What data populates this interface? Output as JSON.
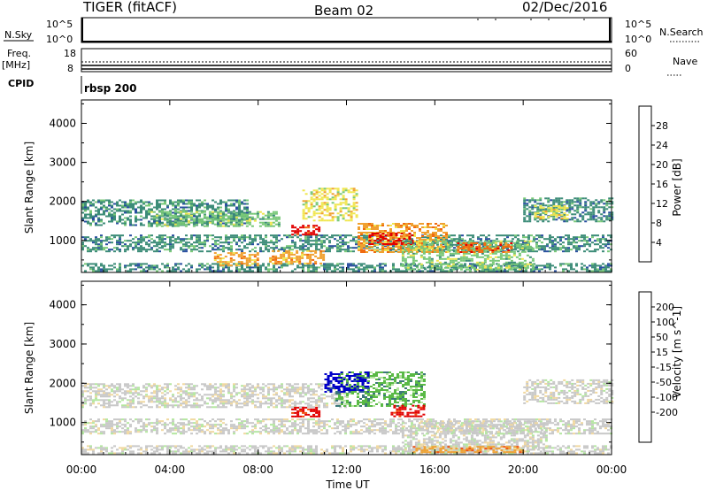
{
  "header": {
    "title": "TIGER (fitACF)",
    "beam": "Beam 02",
    "date": "02/Dec/2016"
  },
  "status_panels": {
    "nsky_label": "N.Sky",
    "nsky_ticks": [
      "10^5",
      "10^0"
    ],
    "nsearch_label": "N.Search",
    "freq_label_top": "Freq.",
    "freq_label_unit": "[MHz]",
    "freq_ticks": [
      "18",
      "8"
    ],
    "nave_ticks": [
      "60",
      "0"
    ],
    "nave_label": "Nave",
    "cpid_label": "CPID",
    "cpid_value": "rbsp 200"
  },
  "colors": {
    "power_scale": [
      "#0000ff",
      "#2a4fa0",
      "#3c8c78",
      "#78c878",
      "#f0e650",
      "#f0a030",
      "#f06a10",
      "#e10000"
    ],
    "velocity_scale": [
      "#e10000",
      "#f05010",
      "#f0a030",
      "#f0d8a0",
      "#c8c8c8",
      "#b4e6a0",
      "#5ab946",
      "#3c7878",
      "#2a50a0",
      "#0000c8"
    ],
    "ground_scatter": "#c0c0c0"
  },
  "chart_data": [
    {
      "type": "heatmap",
      "name": "power",
      "ylabel": "Slant Range [km]",
      "xlabel": "",
      "xlim_hours": [
        0,
        24
      ],
      "ylim_km": [
        180,
        4600
      ],
      "x_ticks": [
        "00:00",
        "04:00",
        "08:00",
        "12:00",
        "16:00",
        "20:00",
        "00:00"
      ],
      "y_ticks": [
        1000,
        2000,
        3000,
        4000
      ],
      "colorbar": {
        "label": "Power [dB]",
        "ticks": [
          4,
          8,
          12,
          16,
          20,
          24,
          28
        ],
        "range": [
          0,
          32
        ]
      },
      "regions": [
        {
          "t0": 0.0,
          "t1": 24.0,
          "r0": 200,
          "r1": 420,
          "level": 2
        },
        {
          "t0": 0.0,
          "t1": 24.0,
          "r0": 700,
          "r1": 1150,
          "level": 2
        },
        {
          "t0": 0.0,
          "t1": 7.5,
          "r0": 1400,
          "r1": 2050,
          "level": 2
        },
        {
          "t0": 3.0,
          "t1": 9.0,
          "r0": 1350,
          "r1": 1750,
          "level": 3
        },
        {
          "t0": 6.0,
          "t1": 8.0,
          "r0": 380,
          "r1": 700,
          "level": 5
        },
        {
          "t0": 8.5,
          "t1": 11.0,
          "r0": 400,
          "r1": 750,
          "level": 5
        },
        {
          "t0": 9.5,
          "t1": 10.8,
          "r0": 1150,
          "r1": 1400,
          "level": 7
        },
        {
          "t0": 10.0,
          "t1": 12.5,
          "r0": 1500,
          "r1": 2350,
          "level": 4
        },
        {
          "t0": 12.5,
          "t1": 16.5,
          "r0": 700,
          "r1": 1450,
          "level": 5
        },
        {
          "t0": 13.0,
          "t1": 15.0,
          "r0": 900,
          "r1": 1200,
          "level": 7
        },
        {
          "t0": 14.5,
          "t1": 20.5,
          "r0": 250,
          "r1": 1000,
          "level": 3
        },
        {
          "t0": 17.0,
          "t1": 19.5,
          "r0": 700,
          "r1": 950,
          "level": 6
        },
        {
          "t0": 20.0,
          "t1": 24.0,
          "r0": 1500,
          "r1": 2100,
          "level": 2
        },
        {
          "t0": 20.5,
          "t1": 22.0,
          "r0": 1550,
          "r1": 1900,
          "level": 4
        }
      ]
    },
    {
      "type": "heatmap",
      "name": "velocity",
      "ylabel": "Slant Range [km]",
      "xlabel": "Time UT",
      "xlim_hours": [
        0,
        24
      ],
      "ylim_km": [
        180,
        4600
      ],
      "x_ticks": [
        "00:00",
        "04:00",
        "08:00",
        "12:00",
        "16:00",
        "20:00",
        "00:00"
      ],
      "y_ticks": [
        1000,
        2000,
        3000,
        4000
      ],
      "colorbar": {
        "label": "Velocity [m s^-1]",
        "ticks": [
          200,
          100,
          50,
          15,
          -15,
          -50,
          -100,
          -200
        ],
        "range": [
          -250,
          250
        ]
      },
      "regions": [
        {
          "t0": 0.0,
          "t1": 24.0,
          "r0": 200,
          "r1": 420,
          "level": 4
        },
        {
          "t0": 0.0,
          "t1": 24.0,
          "r0": 700,
          "r1": 1100,
          "level": 4
        },
        {
          "t0": 0.0,
          "t1": 12.0,
          "r0": 1400,
          "r1": 2000,
          "level": 4
        },
        {
          "t0": 9.5,
          "t1": 10.8,
          "r0": 1150,
          "r1": 1400,
          "level": 0
        },
        {
          "t0": 11.5,
          "t1": 15.5,
          "r0": 1400,
          "r1": 2300,
          "level": 6
        },
        {
          "t0": 11.0,
          "t1": 13.0,
          "r0": 1800,
          "r1": 2300,
          "level": 9
        },
        {
          "t0": 14.0,
          "t1": 15.5,
          "r0": 1150,
          "r1": 1450,
          "level": 0
        },
        {
          "t0": 14.5,
          "t1": 21.0,
          "r0": 200,
          "r1": 1050,
          "level": 4
        },
        {
          "t0": 15.0,
          "t1": 20.0,
          "r0": 250,
          "r1": 400,
          "level": 2
        },
        {
          "t0": 20.0,
          "t1": 24.0,
          "r0": 1500,
          "r1": 2100,
          "level": 4
        }
      ]
    }
  ]
}
